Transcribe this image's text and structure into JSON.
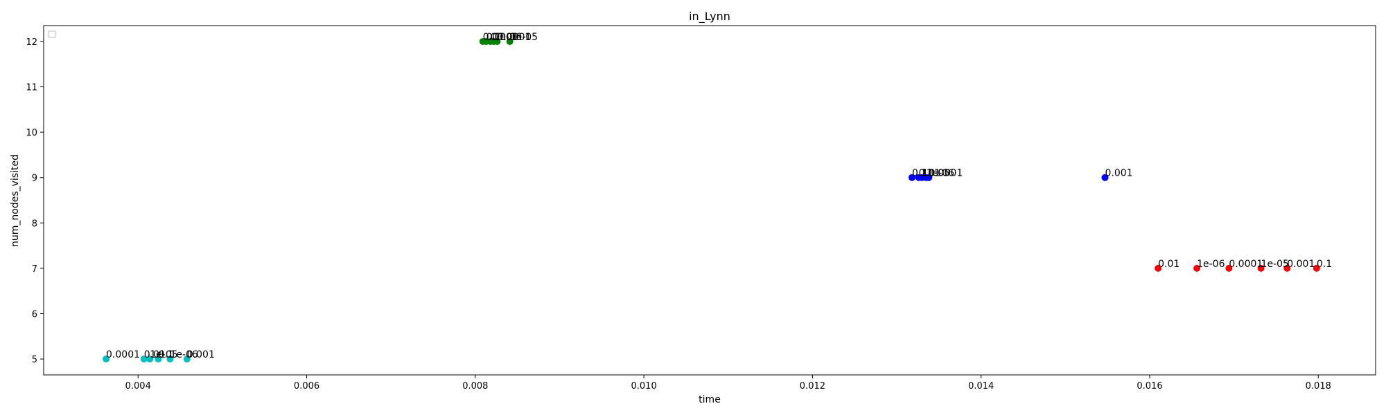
{
  "chart_data": {
    "type": "scatter",
    "title": "in_Lynn",
    "xlabel": "time",
    "ylabel": "num_nodes_visited",
    "xlim": [
      0.00288,
      0.01868
    ],
    "ylim": [
      4.65,
      12.35
    ],
    "xticks": [
      0.004,
      0.006,
      0.008,
      0.01,
      0.012,
      0.014,
      0.016,
      0.018
    ],
    "xtick_labels": [
      "0.004",
      "0.006",
      "0.008",
      "0.010",
      "0.012",
      "0.014",
      "0.016",
      "0.018"
    ],
    "yticks": [
      5,
      6,
      7,
      8,
      9,
      10,
      11,
      12
    ],
    "ytick_labels": [
      "5",
      "6",
      "7",
      "8",
      "9",
      "10",
      "11",
      "12"
    ],
    "grid": false,
    "legend": {
      "placement": "top-left",
      "entries": []
    },
    "series": [
      {
        "name": "cyan",
        "color": "#00bfbf",
        "points": [
          {
            "x": 0.00362,
            "y": 5,
            "label": "0.0001"
          },
          {
            "x": 0.00407,
            "y": 5,
            "label": "0.01"
          },
          {
            "x": 0.00414,
            "y": 5,
            "label": "1e-05"
          },
          {
            "x": 0.00424,
            "y": 5,
            "label": "0.1"
          },
          {
            "x": 0.00438,
            "y": 5,
            "label": "1e-06"
          },
          {
            "x": 0.00458,
            "y": 5,
            "label": "0.001"
          }
        ]
      },
      {
        "name": "green",
        "color": "#008000",
        "points": [
          {
            "x": 0.00809,
            "y": 12,
            "label": "0.01"
          },
          {
            "x": 0.00813,
            "y": 12,
            "label": "0.1"
          },
          {
            "x": 0.00818,
            "y": 12,
            "label": "0.001"
          },
          {
            "x": 0.00822,
            "y": 12,
            "label": "1e-06"
          },
          {
            "x": 0.00826,
            "y": 12,
            "label": "0.0001"
          },
          {
            "x": 0.00841,
            "y": 12,
            "label": "1e-05"
          }
        ]
      },
      {
        "name": "blue",
        "color": "#0000ff",
        "points": [
          {
            "x": 0.01318,
            "y": 9,
            "label": "0.1"
          },
          {
            "x": 0.01326,
            "y": 9,
            "label": "0.01"
          },
          {
            "x": 0.0133,
            "y": 9,
            "label": "1e-05"
          },
          {
            "x": 0.01335,
            "y": 9,
            "label": "1e-06"
          },
          {
            "x": 0.01338,
            "y": 9,
            "label": "0.0001"
          },
          {
            "x": 0.01547,
            "y": 9,
            "label": "0.001"
          }
        ]
      },
      {
        "name": "red",
        "color": "#ff0000",
        "points": [
          {
            "x": 0.0161,
            "y": 7,
            "label": "0.01"
          },
          {
            "x": 0.01656,
            "y": 7,
            "label": "1e-06"
          },
          {
            "x": 0.01694,
            "y": 7,
            "label": "0.0001"
          },
          {
            "x": 0.01732,
            "y": 7,
            "label": "1e-05"
          },
          {
            "x": 0.01763,
            "y": 7,
            "label": "0.001"
          },
          {
            "x": 0.01798,
            "y": 7,
            "label": "0.1"
          }
        ]
      }
    ]
  }
}
